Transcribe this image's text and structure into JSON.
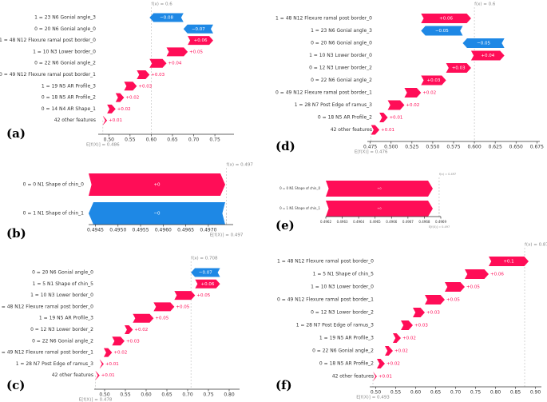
{
  "colors": {
    "positive": "#ff0d57",
    "negative": "#1e88e5",
    "axis": "#333333",
    "muted": "#888888",
    "dashed": "#bbbbbb"
  },
  "chart_data": [
    {
      "panel": "(a)",
      "type": "waterfall",
      "fx_label": "f(x) = 0.6",
      "efx_label": "E[f(X)] = 0.486",
      "base": 0.486,
      "fx": 0.6,
      "xlim": [
        0.475,
        0.795
      ],
      "xticks": [
        0.5,
        0.55,
        0.6,
        0.65,
        0.7,
        0.75
      ],
      "xtick_labels": [
        "0.50",
        "0.55",
        "0.60",
        "0.65",
        "0.70",
        "0.75"
      ],
      "features": [
        {
          "value": "1",
          "name": "23  N6 Gonial angle_3",
          "shap": -0.08,
          "label": "−0.08"
        },
        {
          "value": "0",
          "name": "20  N6 Gonial angle_0",
          "shap": -0.07,
          "label": "−0.07"
        },
        {
          "value": "1",
          "name": "48  N12 Flexure ramal post border_0",
          "shap": 0.06,
          "label": "+0.06"
        },
        {
          "value": "1",
          "name": "10  N3 Lower border_0",
          "shap": 0.05,
          "label": "+0.05"
        },
        {
          "value": "0",
          "name": "22  N6 Gonial angle_2",
          "shap": 0.04,
          "label": "+0.04"
        },
        {
          "value": "0",
          "name": "49  N12 Flexure ramal post border_1",
          "shap": 0.03,
          "label": "+0.03"
        },
        {
          "value": "1",
          "name": "19  N5 AR Profile_3",
          "shap": 0.03,
          "label": "+0.03"
        },
        {
          "value": "0",
          "name": "18  N5 AR Profile_2",
          "shap": 0.02,
          "label": "+0.02"
        },
        {
          "value": "0",
          "name": "14  N4 AR Shape_1",
          "shap": 0.02,
          "label": "+0.02"
        },
        {
          "value": "",
          "name": "42 other features",
          "shap": 0.01,
          "label": "+0.01"
        }
      ]
    },
    {
      "panel": "(b)",
      "type": "waterfall",
      "fx_label": "f(x) = 0.497",
      "efx_label": "E[f(X)] = 0.497",
      "base": 0.4974,
      "fx": 0.4974,
      "xlim": [
        0.49435,
        0.49755
      ],
      "xticks": [
        0.4945,
        0.495,
        0.4955,
        0.496,
        0.4965,
        0.497
      ],
      "xtick_labels": [
        "0.4945",
        "0.4950",
        "0.4955",
        "0.4960",
        "0.4965",
        "0.4970"
      ],
      "features": [
        {
          "value": "0",
          "name": "0  N1 Shape of chin_0",
          "shap": 0.0,
          "label": "+0",
          "sign": 1
        },
        {
          "value": "0",
          "name": "1  N1 Shape of chin_1",
          "shap": 0.0,
          "label": "−0",
          "sign": -1
        }
      ]
    },
    {
      "panel": "(c)",
      "type": "waterfall",
      "fx_label": "f(x) = 0.708",
      "efx_label": "E[f(X)] = 0.478",
      "base": 0.478,
      "fx": 0.708,
      "xlim": [
        0.475,
        0.825
      ],
      "xticks": [
        0.5,
        0.55,
        0.6,
        0.65,
        0.7,
        0.75,
        0.8
      ],
      "xtick_labels": [
        "0.50",
        "0.55",
        "0.60",
        "0.65",
        "0.70",
        "0.75",
        "0.80"
      ],
      "features": [
        {
          "value": "0",
          "name": "20  N6 Gonial angle_0",
          "shap": -0.07,
          "label": "−0.07"
        },
        {
          "value": "1",
          "name": "5  N1 Shape of chin_5",
          "shap": 0.06,
          "label": "+0.06"
        },
        {
          "value": "1",
          "name": "10  N3 Lower border_0",
          "shap": 0.05,
          "label": "+0.05"
        },
        {
          "value": "1",
          "name": "48  N12 Flexure ramal post border_0",
          "shap": 0.05,
          "label": "+0.05"
        },
        {
          "value": "1",
          "name": "19  N5 AR Profile_3",
          "shap": 0.05,
          "label": "+0.05"
        },
        {
          "value": "0",
          "name": "12  N3 Lower border_2",
          "shap": 0.02,
          "label": "+0.02"
        },
        {
          "value": "0",
          "name": "22  N6 Gonial angle_2",
          "shap": 0.03,
          "label": "+0.03"
        },
        {
          "value": "0",
          "name": "49  N12 Flexure ramal post border_1",
          "shap": 0.02,
          "label": "+0.02"
        },
        {
          "value": "1",
          "name": "28  N7 Post Edge of ramus_3",
          "shap": 0.01,
          "label": "+0.01"
        },
        {
          "value": "",
          "name": "42 other features",
          "shap": 0.01,
          "label": "+0.01"
        }
      ]
    },
    {
      "panel": "(d)",
      "type": "waterfall",
      "fx_label": "f(x) = 0.6",
      "efx_label": "E[f(X)] = 0.476",
      "base": 0.476,
      "fx": 0.6,
      "xlim": [
        0.4715,
        0.6785
      ],
      "xticks": [
        0.475,
        0.5,
        0.525,
        0.55,
        0.575,
        0.6,
        0.625,
        0.65,
        0.675
      ],
      "xtick_labels": [
        "0.475",
        "0.500",
        "0.525",
        "0.550",
        "0.575",
        "0.600",
        "0.625",
        "0.650",
        "0.675"
      ],
      "features": [
        {
          "value": "1",
          "name": "48  N12 Flexure ramal post border_0",
          "shap": 0.06,
          "label": "+0.06"
        },
        {
          "value": "1",
          "name": "23  N6 Gonial angle_3",
          "shap": -0.05,
          "label": "−0.05"
        },
        {
          "value": "0",
          "name": "20  N6 Gonial angle_0",
          "shap": -0.05,
          "label": "−0.05"
        },
        {
          "value": "1",
          "name": "10  N3 Lower border_0",
          "shap": 0.04,
          "label": "+0.04"
        },
        {
          "value": "0",
          "name": "12  N3 Lower border_2",
          "shap": 0.03,
          "label": "+0.03"
        },
        {
          "value": "0",
          "name": "22  N6 Gonial angle_2",
          "shap": 0.03,
          "label": "+0.03"
        },
        {
          "value": "0",
          "name": "49  N12 Flexure ramal post border_1",
          "shap": 0.02,
          "label": "+0.02"
        },
        {
          "value": "1",
          "name": "28  N7 Post Edge of ramus_3",
          "shap": 0.02,
          "label": "+0.02"
        },
        {
          "value": "0",
          "name": "18  N5 AR Profile_2",
          "shap": 0.01,
          "label": "+0.01"
        },
        {
          "value": "",
          "name": "42 other features",
          "shap": 0.01,
          "label": "+0.01"
        }
      ]
    },
    {
      "panel": "(e)",
      "type": "waterfall",
      "fx_label": "f(x) = 0.497",
      "efx_label": "E[f(X)] = 0.497",
      "base": 0.49689,
      "fx": 0.49689,
      "xlim": [
        0.4962,
        0.4969
      ],
      "xticks": [
        0.4962,
        0.4963,
        0.4964,
        0.4965,
        0.4966,
        0.4967,
        0.4968,
        0.4969
      ],
      "xtick_labels": [
        "0.4962",
        "0.4963",
        "0.4964",
        "0.4965",
        "0.4966",
        "0.4967",
        "0.4968",
        "0.4969"
      ],
      "features": [
        {
          "value": "0",
          "name": "0  N1 Shape of chin_0",
          "shap": 0.0,
          "label": "+0",
          "sign": 1
        },
        {
          "value": "0",
          "name": "1  N1 Shape of chin_1",
          "shap": 0.0,
          "label": "+0",
          "sign": 1
        }
      ]
    },
    {
      "panel": "(f)",
      "type": "waterfall",
      "fx_label": "f(x) = 0.873",
      "efx_label": "E[f(X)] = 0.493",
      "base": 0.493,
      "fx": 0.873,
      "xlim": [
        0.485,
        0.915
      ],
      "xticks": [
        0.5,
        0.55,
        0.6,
        0.65,
        0.7,
        0.75,
        0.8,
        0.85,
        0.9
      ],
      "xtick_labels": [
        "0.50",
        "0.55",
        "0.60",
        "0.65",
        "0.70",
        "0.75",
        "0.80",
        "0.85",
        "0.90"
      ],
      "features": [
        {
          "value": "1",
          "name": "48  N12 Flexure ramal post border_0",
          "shap": 0.1,
          "label": "+0.1"
        },
        {
          "value": "1",
          "name": "5  N1 Shape of chin_5",
          "shap": 0.06,
          "label": "+0.06"
        },
        {
          "value": "1",
          "name": "10  N3 Lower border_0",
          "shap": 0.05,
          "label": "+0.05"
        },
        {
          "value": "0",
          "name": "49  N12 Flexure ramal post border_1",
          "shap": 0.05,
          "label": "+0.05"
        },
        {
          "value": "0",
          "name": "12  N3 Lower border_2",
          "shap": 0.03,
          "label": "+0.03"
        },
        {
          "value": "1",
          "name": "28  N7 Post Edge of ramus_3",
          "shap": 0.03,
          "label": "+0.03"
        },
        {
          "value": "1",
          "name": "19  N5 AR Profile_3",
          "shap": 0.02,
          "label": "+0.02"
        },
        {
          "value": "0",
          "name": "22  N6 Gonial angle_2",
          "shap": 0.02,
          "label": "+0.02"
        },
        {
          "value": "0",
          "name": "18  N5 AR Profile_2",
          "shap": 0.02,
          "label": "+0.02"
        },
        {
          "value": "",
          "name": "42 other features",
          "shap": 0.01,
          "label": "+0.01"
        }
      ]
    }
  ]
}
